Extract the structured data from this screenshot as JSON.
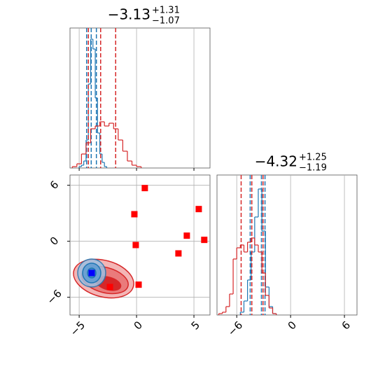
{
  "chart_data": [
    {
      "type": "histogram",
      "title": "−3.13",
      "title_sup": "+1.31",
      "title_sub": "−1.07",
      "xlim": [
        -5.8,
        6.4
      ],
      "ylim": [
        0,
        100
      ],
      "xticks": [
        {
          "value": -5,
          "label": "−5"
        },
        0,
        5
      ],
      "grid": true,
      "series": [
        {
          "color": "#1f77b4",
          "bins": [
            -5.0,
            -4.8,
            -4.6,
            -4.4,
            -4.2,
            -4.0,
            -3.8,
            -3.6,
            -3.4,
            -3.2,
            -3.0,
            -2.8,
            -2.6
          ],
          "values": [
            1,
            2,
            5,
            20,
            60,
            92,
            85,
            50,
            25,
            10,
            4,
            1
          ],
          "quantiles": [
            -4.35,
            -3.95,
            -3.5
          ]
        },
        {
          "color": "#d62728",
          "bins": [
            -5.6,
            -5.2,
            -4.8,
            -4.4,
            -4.0,
            -3.6,
            -3.2,
            -2.8,
            -2.4,
            -2.0,
            -1.6,
            -1.2,
            -0.8,
            -0.4,
            0.0,
            0.4
          ],
          "values": [
            1,
            3,
            10,
            18,
            28,
            30,
            33,
            30,
            32,
            28,
            20,
            12,
            5,
            2,
            1
          ],
          "quantiles": [
            -4.2,
            -3.13,
            -1.82
          ]
        }
      ]
    },
    {
      "type": "scatter",
      "xlim": [
        -5.8,
        6.4
      ],
      "ylim": [
        -7.9,
        7.1
      ],
      "xticks": [
        {
          "value": -5,
          "label": "−5"
        },
        0,
        5
      ],
      "yticks": [
        {
          "value": -6,
          "label": "−6"
        },
        0,
        6
      ],
      "grid": true,
      "series": [
        {
          "color": "#ff0000",
          "x": [
            0.72,
            -0.19,
            5.42,
            -0.07,
            4.38,
            5.9,
            3.65,
            0.18,
            -2.32
          ],
          "values": [
            5.7,
            2.9,
            3.45,
            -0.4,
            0.6,
            0.15,
            -1.3,
            -4.65,
            -4.9
          ]
        },
        {
          "color": "#0000ff",
          "x": [
            -3.91
          ],
          "values": [
            -3.4
          ]
        }
      ]
    },
    {
      "type": "histogram",
      "title": "−4.32",
      "title_sup": "+1.25",
      "title_sub": "−1.19",
      "xlim": [
        -8.2,
        7.4
      ],
      "ylim": [
        0,
        100
      ],
      "xticks": [
        {
          "value": -6,
          "label": "−6"
        },
        0,
        6
      ],
      "grid": true,
      "series": [
        {
          "color": "#1f77b4",
          "bins": [
            -5.6,
            -5.2,
            -4.8,
            -4.4,
            -4.0,
            -3.6,
            -3.2,
            -2.8,
            -2.4,
            -2.0,
            -1.6
          ],
          "values": [
            2,
            10,
            25,
            45,
            70,
            90,
            60,
            20,
            6,
            1
          ],
          "quantiles": [
            -4.5,
            -3.25,
            -2.85
          ]
        },
        {
          "color": "#d62728",
          "bins": [
            -8.0,
            -7.6,
            -7.2,
            -6.8,
            -6.4,
            -6.0,
            -5.6,
            -5.2,
            -4.8,
            -4.4,
            -4.0,
            -3.6,
            -3.2,
            -2.8,
            -2.4,
            -2.0,
            -1.6
          ],
          "values": [
            1,
            2,
            6,
            15,
            40,
            48,
            50,
            45,
            52,
            55,
            50,
            45,
            30,
            14,
            5,
            1
          ],
          "quantiles": [
            -5.51,
            -4.32,
            -3.07
          ]
        }
      ]
    }
  ]
}
